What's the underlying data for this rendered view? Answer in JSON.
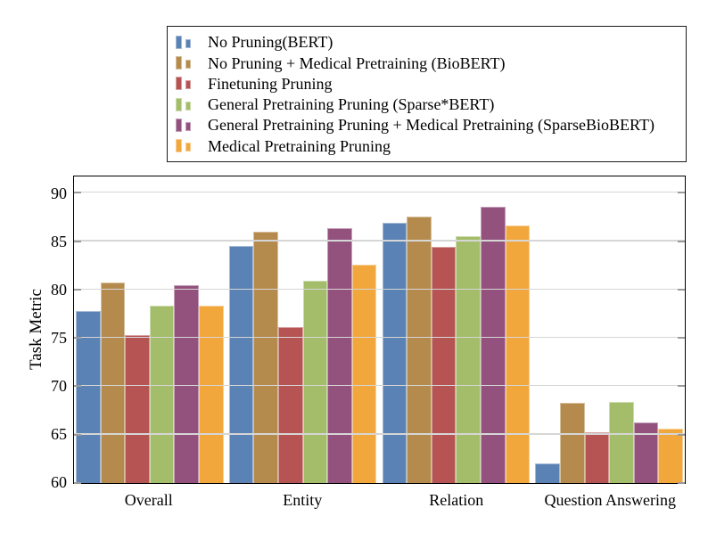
{
  "figure": {
    "background": "#ffffff",
    "frame_color": "#000000",
    "gridline_color": "#d6d6d6",
    "tick_color": "#9b9b9b"
  },
  "chart_data": {
    "type": "bar",
    "title": "",
    "xlabel": "",
    "ylabel": "Task Metric",
    "categories": [
      "Overall",
      "Entity",
      "Relation",
      "Question Answering"
    ],
    "series": [
      {
        "name": "No Pruning(BERT)",
        "color": "#5B82B4",
        "values": [
          77.8,
          84.5,
          86.9,
          62.0
        ]
      },
      {
        "name": "No Pruning + Medical Pretraining (BioBERT)",
        "color": "#B58A4D",
        "values": [
          80.7,
          86.0,
          87.6,
          68.3
        ]
      },
      {
        "name": "Finetuning Pruning",
        "color": "#B55452",
        "values": [
          75.3,
          76.1,
          84.4,
          65.3
        ]
      },
      {
        "name": "General Pretraining Pruning (Sparse*BERT)",
        "color": "#A3BD6A",
        "values": [
          78.3,
          80.9,
          85.5,
          68.4
        ]
      },
      {
        "name": "General Pretraining Pruning + Medical Pretraining (SparseBioBERT)",
        "color": "#93527E",
        "values": [
          80.5,
          86.4,
          88.6,
          66.3
        ]
      },
      {
        "name": "Medical Pretraining Pruning",
        "color": "#F2A73D",
        "values": [
          78.3,
          82.6,
          86.6,
          65.6
        ]
      }
    ],
    "yticks": [
      60,
      65,
      70,
      75,
      80,
      85,
      90
    ],
    "ylim": [
      60,
      91.7
    ],
    "grid": true,
    "legend_position": "top"
  }
}
